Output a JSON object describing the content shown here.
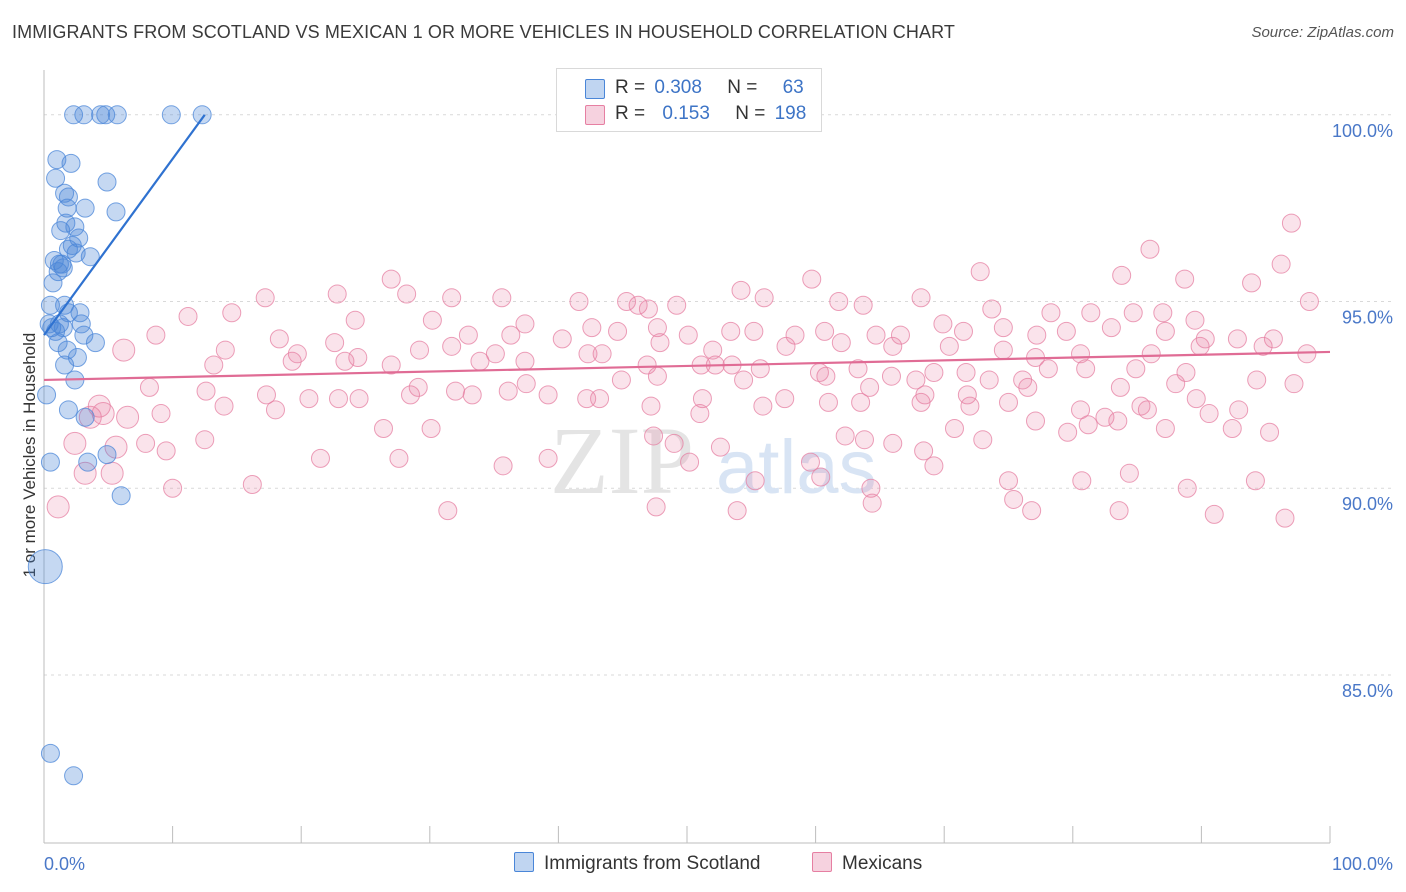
{
  "title": "IMMIGRANTS FROM SCOTLAND VS MEXICAN 1 OR MORE VEHICLES IN HOUSEHOLD CORRELATION CHART",
  "source": "Source: ZipAtlas.com",
  "watermark": {
    "zip": "ZIP",
    "atlas": "atlas"
  },
  "legend_top": [
    {
      "r_label": "R =",
      "r_value": "0.308",
      "n_label": "N =",
      "n_value": "63",
      "color": "#4a86d8"
    },
    {
      "r_label": "R =",
      "r_value": "0.153",
      "n_label": "N =",
      "n_value": "198",
      "color": "#e67fa2"
    }
  ],
  "legend_bottom": [
    {
      "label": "Immigrants from Scotland",
      "color": "#4a86d8"
    },
    {
      "label": "Mexicans",
      "color": "#e67fa2"
    }
  ],
  "chart_data": {
    "type": "scatter",
    "title": "IMMIGRANTS FROM SCOTLAND VS MEXICAN 1 OR MORE VEHICLES IN HOUSEHOLD CORRELATION CHART",
    "xlabel": "",
    "ylabel": "1 or more Vehicles in Household",
    "xlim": [
      0,
      100
    ],
    "ylim": [
      80.5,
      101.2
    ],
    "x_tick_labels": [
      "0.0%",
      "100.0%"
    ],
    "y_tick_labels": [
      "100.0%",
      "95.0%",
      "90.0%",
      "85.0%"
    ],
    "y_ticks": [
      100,
      95,
      90,
      85
    ],
    "series": [
      {
        "name": "Immigrants from Scotland",
        "color": "#4a86d8",
        "trend": {
          "x0": 0.0,
          "y0": 94.1,
          "x1": 12.5,
          "y1": 100.0
        },
        "points": [
          [
            2.3,
            100
          ],
          [
            3.1,
            100
          ],
          [
            4.4,
            100
          ],
          [
            4.8,
            100
          ],
          [
            5.7,
            100
          ],
          [
            9.9,
            100
          ],
          [
            12.3,
            100
          ],
          [
            1.0,
            98.8
          ],
          [
            2.1,
            98.7
          ],
          [
            0.9,
            98.3
          ],
          [
            4.9,
            98.2
          ],
          [
            1.6,
            97.9
          ],
          [
            1.9,
            97.8
          ],
          [
            1.8,
            97.5
          ],
          [
            3.2,
            97.5
          ],
          [
            5.6,
            97.4
          ],
          [
            1.7,
            97.1
          ],
          [
            2.4,
            97.0
          ],
          [
            1.3,
            96.9
          ],
          [
            2.7,
            96.7
          ],
          [
            2.2,
            96.5
          ],
          [
            1.9,
            96.4
          ],
          [
            2.5,
            96.3
          ],
          [
            3.6,
            96.2
          ],
          [
            0.8,
            96.1
          ],
          [
            1.2,
            96.0
          ],
          [
            1.4,
            96.0
          ],
          [
            1.5,
            95.9
          ],
          [
            1.1,
            95.8
          ],
          [
            0.7,
            95.5
          ],
          [
            0.5,
            94.9
          ],
          [
            1.6,
            94.9
          ],
          [
            1.9,
            94.7
          ],
          [
            2.8,
            94.7
          ],
          [
            0.4,
            94.4
          ],
          [
            0.6,
            94.3
          ],
          [
            1.2,
            94.4
          ],
          [
            1.5,
            94.3
          ],
          [
            2.9,
            94.4
          ],
          [
            0.9,
            94.2
          ],
          [
            3.1,
            94.1
          ],
          [
            1.1,
            93.9
          ],
          [
            4.0,
            93.9
          ],
          [
            1.8,
            93.7
          ],
          [
            2.6,
            93.5
          ],
          [
            1.6,
            93.3
          ],
          [
            2.4,
            92.9
          ],
          [
            0.2,
            92.5
          ],
          [
            1.9,
            92.1
          ],
          [
            3.2,
            91.9
          ],
          [
            4.9,
            90.9
          ],
          [
            0.5,
            90.7
          ],
          [
            3.4,
            90.7
          ],
          [
            6.0,
            89.8
          ],
          [
            0.1,
            87.9
          ],
          [
            0.5,
            82.9
          ],
          [
            2.3,
            82.3
          ]
        ]
      },
      {
        "name": "Mexicans",
        "color": "#e67fa2",
        "trend": {
          "x0": 0.0,
          "y0": 92.9,
          "x1": 100.0,
          "y1": 93.65
        },
        "points": [
          [
            97.0,
            97.1
          ],
          [
            96.2,
            96.0
          ],
          [
            86.0,
            96.4
          ],
          [
            83.8,
            95.7
          ],
          [
            72.8,
            95.8
          ],
          [
            54.2,
            95.3
          ],
          [
            59.7,
            95.6
          ],
          [
            88.7,
            95.6
          ],
          [
            93.9,
            95.5
          ],
          [
            98.4,
            95.0
          ],
          [
            27.0,
            95.6
          ],
          [
            17.2,
            95.1
          ],
          [
            22.8,
            95.2
          ],
          [
            28.2,
            95.2
          ],
          [
            31.7,
            95.1
          ],
          [
            35.6,
            95.1
          ],
          [
            41.6,
            95.0
          ],
          [
            45.3,
            95.0
          ],
          [
            46.2,
            94.9
          ],
          [
            47.0,
            94.8
          ],
          [
            49.2,
            94.9
          ],
          [
            56.0,
            95.1
          ],
          [
            61.8,
            95.0
          ],
          [
            63.7,
            94.9
          ],
          [
            68.2,
            95.1
          ],
          [
            73.7,
            94.8
          ],
          [
            78.3,
            94.7
          ],
          [
            81.4,
            94.7
          ],
          [
            84.7,
            94.7
          ],
          [
            87.0,
            94.7
          ],
          [
            89.5,
            94.5
          ],
          [
            11.2,
            94.6
          ],
          [
            14.6,
            94.7
          ],
          [
            24.2,
            94.5
          ],
          [
            30.2,
            94.5
          ],
          [
            33.0,
            94.1
          ],
          [
            37.4,
            94.4
          ],
          [
            42.6,
            94.3
          ],
          [
            44.6,
            94.2
          ],
          [
            47.7,
            94.3
          ],
          [
            50.1,
            94.1
          ],
          [
            53.4,
            94.2
          ],
          [
            55.2,
            94.2
          ],
          [
            58.4,
            94.1
          ],
          [
            60.7,
            94.2
          ],
          [
            64.7,
            94.1
          ],
          [
            66.6,
            94.1
          ],
          [
            69.9,
            94.4
          ],
          [
            71.5,
            94.2
          ],
          [
            74.6,
            94.3
          ],
          [
            77.2,
            94.1
          ],
          [
            79.5,
            94.2
          ],
          [
            83.0,
            94.3
          ],
          [
            87.2,
            94.2
          ],
          [
            90.3,
            94.0
          ],
          [
            92.8,
            94.0
          ],
          [
            95.6,
            94.0
          ],
          [
            8.7,
            94.1
          ],
          [
            18.3,
            94.0
          ],
          [
            22.6,
            93.9
          ],
          [
            31.7,
            93.8
          ],
          [
            36.3,
            94.1
          ],
          [
            40.3,
            94.0
          ],
          [
            43.4,
            93.6
          ],
          [
            47.9,
            93.9
          ],
          [
            52.0,
            93.7
          ],
          [
            57.7,
            93.8
          ],
          [
            62.0,
            93.9
          ],
          [
            66.0,
            93.8
          ],
          [
            70.4,
            93.8
          ],
          [
            74.6,
            93.7
          ],
          [
            77.1,
            93.5
          ],
          [
            80.6,
            93.6
          ],
          [
            86.1,
            93.6
          ],
          [
            89.9,
            93.8
          ],
          [
            94.8,
            93.8
          ],
          [
            98.2,
            93.6
          ],
          [
            6.2,
            93.7
          ],
          [
            14.1,
            93.7
          ],
          [
            19.7,
            93.6
          ],
          [
            24.4,
            93.5
          ],
          [
            29.2,
            93.7
          ],
          [
            35.1,
            93.6
          ],
          [
            42.3,
            93.6
          ],
          [
            46.9,
            93.3
          ],
          [
            51.1,
            93.3
          ],
          [
            53.5,
            93.3
          ],
          [
            55.7,
            93.2
          ],
          [
            60.3,
            93.1
          ],
          [
            63.3,
            93.2
          ],
          [
            65.9,
            93.0
          ],
          [
            69.2,
            93.1
          ],
          [
            71.7,
            93.1
          ],
          [
            76.1,
            92.9
          ],
          [
            78.1,
            93.2
          ],
          [
            81.0,
            93.2
          ],
          [
            84.9,
            93.2
          ],
          [
            88.8,
            93.1
          ],
          [
            94.3,
            92.9
          ],
          [
            97.2,
            92.8
          ],
          [
            13.2,
            93.3
          ],
          [
            19.3,
            93.4
          ],
          [
            23.4,
            93.4
          ],
          [
            27.0,
            93.3
          ],
          [
            33.9,
            93.4
          ],
          [
            37.4,
            93.4
          ],
          [
            44.9,
            92.9
          ],
          [
            47.7,
            93.0
          ],
          [
            52.2,
            93.3
          ],
          [
            54.4,
            92.9
          ],
          [
            60.8,
            93.0
          ],
          [
            64.2,
            92.7
          ],
          [
            67.8,
            92.9
          ],
          [
            71.8,
            92.5
          ],
          [
            73.5,
            92.9
          ],
          [
            76.5,
            92.7
          ],
          [
            83.7,
            92.7
          ],
          [
            88.0,
            92.8
          ],
          [
            8.2,
            92.7
          ],
          [
            12.6,
            92.6
          ],
          [
            17.3,
            92.5
          ],
          [
            24.5,
            92.4
          ],
          [
            28.5,
            92.5
          ],
          [
            33.3,
            92.5
          ],
          [
            37.5,
            92.8
          ],
          [
            42.2,
            92.4
          ],
          [
            47.2,
            92.2
          ],
          [
            51.2,
            92.4
          ],
          [
            57.6,
            92.4
          ],
          [
            63.5,
            92.3
          ],
          [
            68.5,
            92.5
          ],
          [
            72.0,
            92.2
          ],
          [
            75.0,
            92.3
          ],
          [
            80.6,
            92.1
          ],
          [
            82.5,
            91.9
          ],
          [
            85.8,
            92.1
          ],
          [
            89.6,
            92.4
          ],
          [
            92.9,
            92.1
          ],
          [
            4.3,
            92.2
          ],
          [
            9.1,
            92.0
          ],
          [
            14.0,
            92.2
          ],
          [
            18.0,
            92.1
          ],
          [
            20.6,
            92.4
          ],
          [
            22.9,
            92.4
          ],
          [
            29.1,
            92.7
          ],
          [
            32.0,
            92.6
          ],
          [
            36.1,
            92.6
          ],
          [
            39.2,
            92.5
          ],
          [
            43.2,
            92.4
          ],
          [
            51.0,
            92.0
          ],
          [
            55.9,
            92.2
          ],
          [
            61.0,
            92.3
          ],
          [
            68.2,
            92.3
          ],
          [
            77.1,
            91.8
          ],
          [
            81.2,
            91.7
          ],
          [
            85.3,
            92.2
          ],
          [
            87.2,
            91.6
          ],
          [
            90.6,
            92.0
          ],
          [
            3.6,
            91.9
          ],
          [
            4.6,
            92.0
          ],
          [
            6.5,
            91.9
          ],
          [
            26.4,
            91.6
          ],
          [
            30.1,
            91.6
          ],
          [
            47.4,
            91.4
          ],
          [
            49.0,
            91.2
          ],
          [
            52.6,
            91.1
          ],
          [
            62.3,
            91.4
          ],
          [
            63.8,
            91.3
          ],
          [
            66.0,
            91.2
          ],
          [
            68.4,
            91.0
          ],
          [
            70.8,
            91.6
          ],
          [
            73.0,
            91.3
          ],
          [
            79.6,
            91.5
          ],
          [
            83.5,
            91.8
          ],
          [
            92.4,
            91.6
          ],
          [
            95.3,
            91.5
          ],
          [
            2.4,
            91.2
          ],
          [
            5.6,
            91.1
          ],
          [
            7.9,
            91.2
          ],
          [
            9.5,
            91.0
          ],
          [
            12.5,
            91.3
          ],
          [
            21.5,
            90.8
          ],
          [
            27.6,
            90.8
          ],
          [
            35.7,
            90.6
          ],
          [
            39.2,
            90.8
          ],
          [
            50.2,
            90.7
          ],
          [
            59.6,
            90.7
          ],
          [
            69.2,
            90.6
          ],
          [
            75.0,
            90.2
          ],
          [
            84.4,
            90.4
          ],
          [
            3.2,
            90.4
          ],
          [
            5.3,
            90.4
          ],
          [
            10.0,
            90.0
          ],
          [
            16.2,
            90.1
          ],
          [
            55.3,
            90.2
          ],
          [
            60.4,
            90.3
          ],
          [
            64.3,
            90.0
          ],
          [
            80.7,
            90.2
          ],
          [
            88.9,
            90.0
          ],
          [
            94.2,
            90.2
          ],
          [
            1.1,
            89.5
          ],
          [
            31.4,
            89.4
          ],
          [
            47.6,
            89.5
          ],
          [
            53.9,
            89.4
          ],
          [
            64.4,
            89.6
          ],
          [
            75.4,
            89.7
          ],
          [
            76.8,
            89.4
          ],
          [
            83.6,
            89.4
          ],
          [
            91.0,
            89.3
          ],
          [
            96.5,
            89.2
          ]
        ]
      }
    ]
  }
}
